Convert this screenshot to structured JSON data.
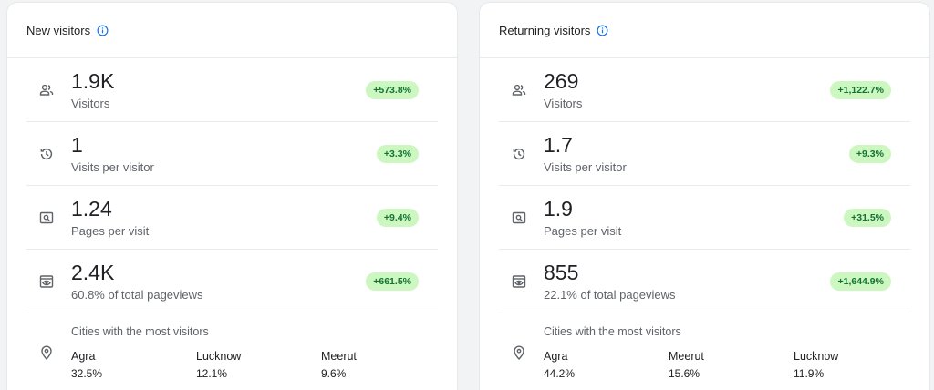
{
  "cards": [
    {
      "title": "New visitors",
      "metrics": [
        {
          "icon": "people-icon",
          "value": "1.9K",
          "label": "Visitors",
          "change": "+573.8%"
        },
        {
          "icon": "history-icon",
          "value": "1",
          "label": "Visits per visitor",
          "change": "+3.3%"
        },
        {
          "icon": "page-search-icon",
          "value": "1.24",
          "label": "Pages per visit",
          "change": "+9.4%"
        },
        {
          "icon": "pageview-eye-icon",
          "value": "2.4K",
          "label": "60.8% of total pageviews",
          "change": "+661.5%"
        }
      ],
      "cities_title": "Cities with the most visitors",
      "cities": [
        {
          "name": "Agra",
          "pct": "32.5%"
        },
        {
          "name": "Lucknow",
          "pct": "12.1%"
        },
        {
          "name": "Meerut",
          "pct": "9.6%"
        }
      ]
    },
    {
      "title": "Returning visitors",
      "metrics": [
        {
          "icon": "people-icon",
          "value": "269",
          "label": "Visitors",
          "change": "+1,122.7%"
        },
        {
          "icon": "history-icon",
          "value": "1.7",
          "label": "Visits per visitor",
          "change": "+9.3%"
        },
        {
          "icon": "page-search-icon",
          "value": "1.9",
          "label": "Pages per visit",
          "change": "+31.5%"
        },
        {
          "icon": "pageview-eye-icon",
          "value": "855",
          "label": "22.1% of total pageviews",
          "change": "+1,644.9%"
        }
      ],
      "cities_title": "Cities with the most visitors",
      "cities": [
        {
          "name": "Agra",
          "pct": "44.2%"
        },
        {
          "name": "Meerut",
          "pct": "15.6%"
        },
        {
          "name": "Lucknow",
          "pct": "11.9%"
        }
      ]
    }
  ],
  "colors": {
    "badge_bg": "#cdf7c1",
    "badge_text": "#137333",
    "info_icon": "#1a73e8",
    "icon_gray": "#5f6368"
  }
}
